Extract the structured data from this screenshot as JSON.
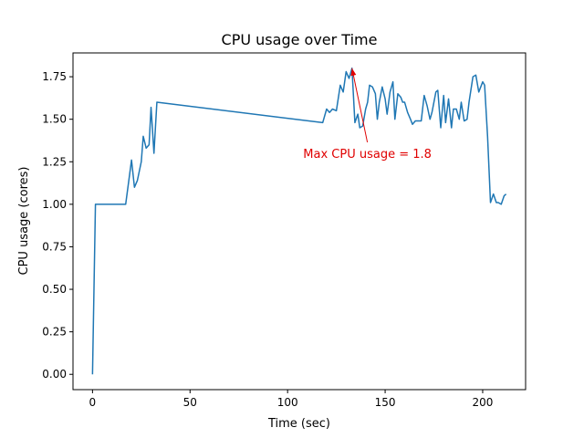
{
  "chart_data": {
    "type": "line",
    "title": "CPU usage over Time",
    "xlabel": "Time (sec)",
    "ylabel": "CPU usage (cores)",
    "xlim": [
      -10,
      222
    ],
    "ylim": [
      -0.09,
      1.89
    ],
    "xticks": [
      0,
      50,
      100,
      150,
      200
    ],
    "xtick_labels": [
      "0",
      "50",
      "100",
      "150",
      "200"
    ],
    "yticks": [
      0.0,
      0.25,
      0.5,
      0.75,
      1.0,
      1.25,
      1.5,
      1.75
    ],
    "ytick_labels": [
      "0.00",
      "0.25",
      "0.50",
      "0.75",
      "1.00",
      "1.25",
      "1.50",
      "1.75"
    ],
    "grid": false,
    "series": [
      {
        "color": "#1f77b4",
        "x": [
          0,
          1.5,
          3,
          5,
          7,
          8,
          10,
          12,
          15,
          17,
          20,
          21.5,
          23,
          25,
          26,
          27.5,
          29,
          30,
          31.5,
          33,
          118,
          120,
          121.5,
          123,
          125,
          127,
          128.5,
          130,
          131.5,
          133,
          134.5,
          136,
          137,
          138.5,
          140,
          141,
          142,
          143.5,
          145,
          146,
          147,
          148.5,
          150,
          151,
          152.5,
          154,
          155,
          156.5,
          158,
          159,
          160,
          161.5,
          163,
          164,
          165.5,
          167,
          168.5,
          170,
          171.5,
          173,
          174,
          175,
          176,
          177,
          178.5,
          180,
          181,
          182.5,
          184,
          185,
          186.5,
          188,
          189,
          190.5,
          192,
          193,
          195,
          196.5,
          198,
          200,
          201,
          202.5,
          204,
          205.5,
          207,
          208,
          209.5,
          211,
          212
        ],
        "y": [
          0.0,
          1.0,
          1.0,
          1.0,
          1.0,
          1.0,
          1.0,
          1.0,
          1.0,
          1.0,
          1.26,
          1.1,
          1.14,
          1.25,
          1.4,
          1.33,
          1.35,
          1.57,
          1.3,
          1.6,
          1.48,
          1.56,
          1.54,
          1.56,
          1.55,
          1.7,
          1.66,
          1.78,
          1.74,
          1.8,
          1.48,
          1.53,
          1.45,
          1.46,
          1.56,
          1.6,
          1.7,
          1.69,
          1.65,
          1.5,
          1.6,
          1.69,
          1.62,
          1.53,
          1.66,
          1.72,
          1.5,
          1.65,
          1.63,
          1.6,
          1.6,
          1.54,
          1.5,
          1.47,
          1.49,
          1.49,
          1.49,
          1.64,
          1.58,
          1.5,
          1.54,
          1.6,
          1.66,
          1.67,
          1.45,
          1.64,
          1.48,
          1.62,
          1.45,
          1.56,
          1.56,
          1.5,
          1.6,
          1.49,
          1.5,
          1.6,
          1.75,
          1.76,
          1.66,
          1.72,
          1.7,
          1.4,
          1.01,
          1.06,
          1.01,
          1.01,
          1.0,
          1.05,
          1.06
        ]
      }
    ],
    "annotations": [
      {
        "text": "Max CPU usage = 1.8",
        "color": "#e00000",
        "xy": [
          133,
          1.8
        ],
        "xytext": [
          108,
          1.3
        ]
      }
    ]
  }
}
